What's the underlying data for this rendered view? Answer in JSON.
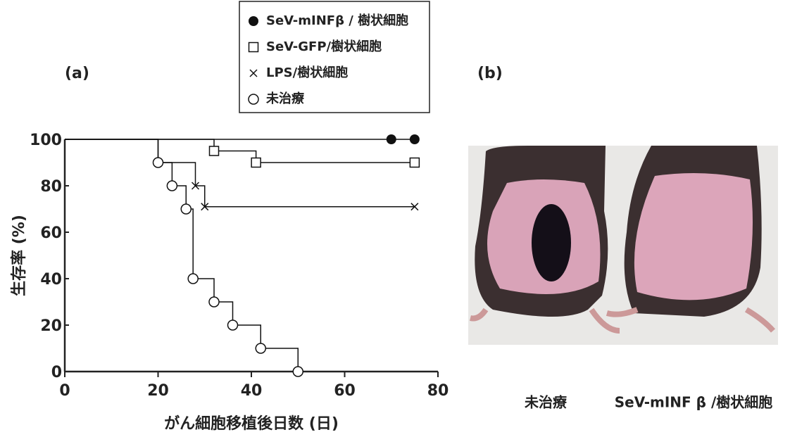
{
  "chart_data": {
    "type": "step",
    "panel_label": "(a)",
    "x_label": "がん細胞移植後日数 (日)",
    "y_label": "生存率 (%)",
    "xlim": [
      0,
      80
    ],
    "xticks": [
      0,
      20,
      40,
      60,
      80
    ],
    "ylim": [
      0,
      100
    ],
    "yticks": [
      0,
      20,
      40,
      60,
      80,
      100
    ],
    "series": [
      {
        "name": "SeV-mINFβ / 樹状細胞",
        "marker": "filled-circle",
        "color": "#111111",
        "x": [
          70,
          75
        ],
        "values": [
          100,
          100
        ]
      },
      {
        "name": "SeV-GFP/樹状細胞",
        "marker": "square",
        "color": "#111111",
        "x": [
          32,
          41,
          75
        ],
        "values": [
          95,
          90,
          90
        ]
      },
      {
        "name": "LPS/樹状細胞",
        "marker": "x",
        "color": "#111111",
        "x": [
          20,
          28,
          30,
          75
        ],
        "values": [
          90,
          80,
          71,
          71
        ]
      },
      {
        "name": "未治療",
        "marker": "circle",
        "color": "#111111",
        "x": [
          20,
          23,
          26,
          27.5,
          32,
          36,
          42,
          50
        ],
        "values": [
          90,
          80,
          70,
          40,
          30,
          20,
          10,
          0
        ]
      }
    ]
  },
  "panel_b": {
    "label": "(b)",
    "captions": [
      "未治療",
      "SeV-mINF β /樹状細胞"
    ]
  }
}
